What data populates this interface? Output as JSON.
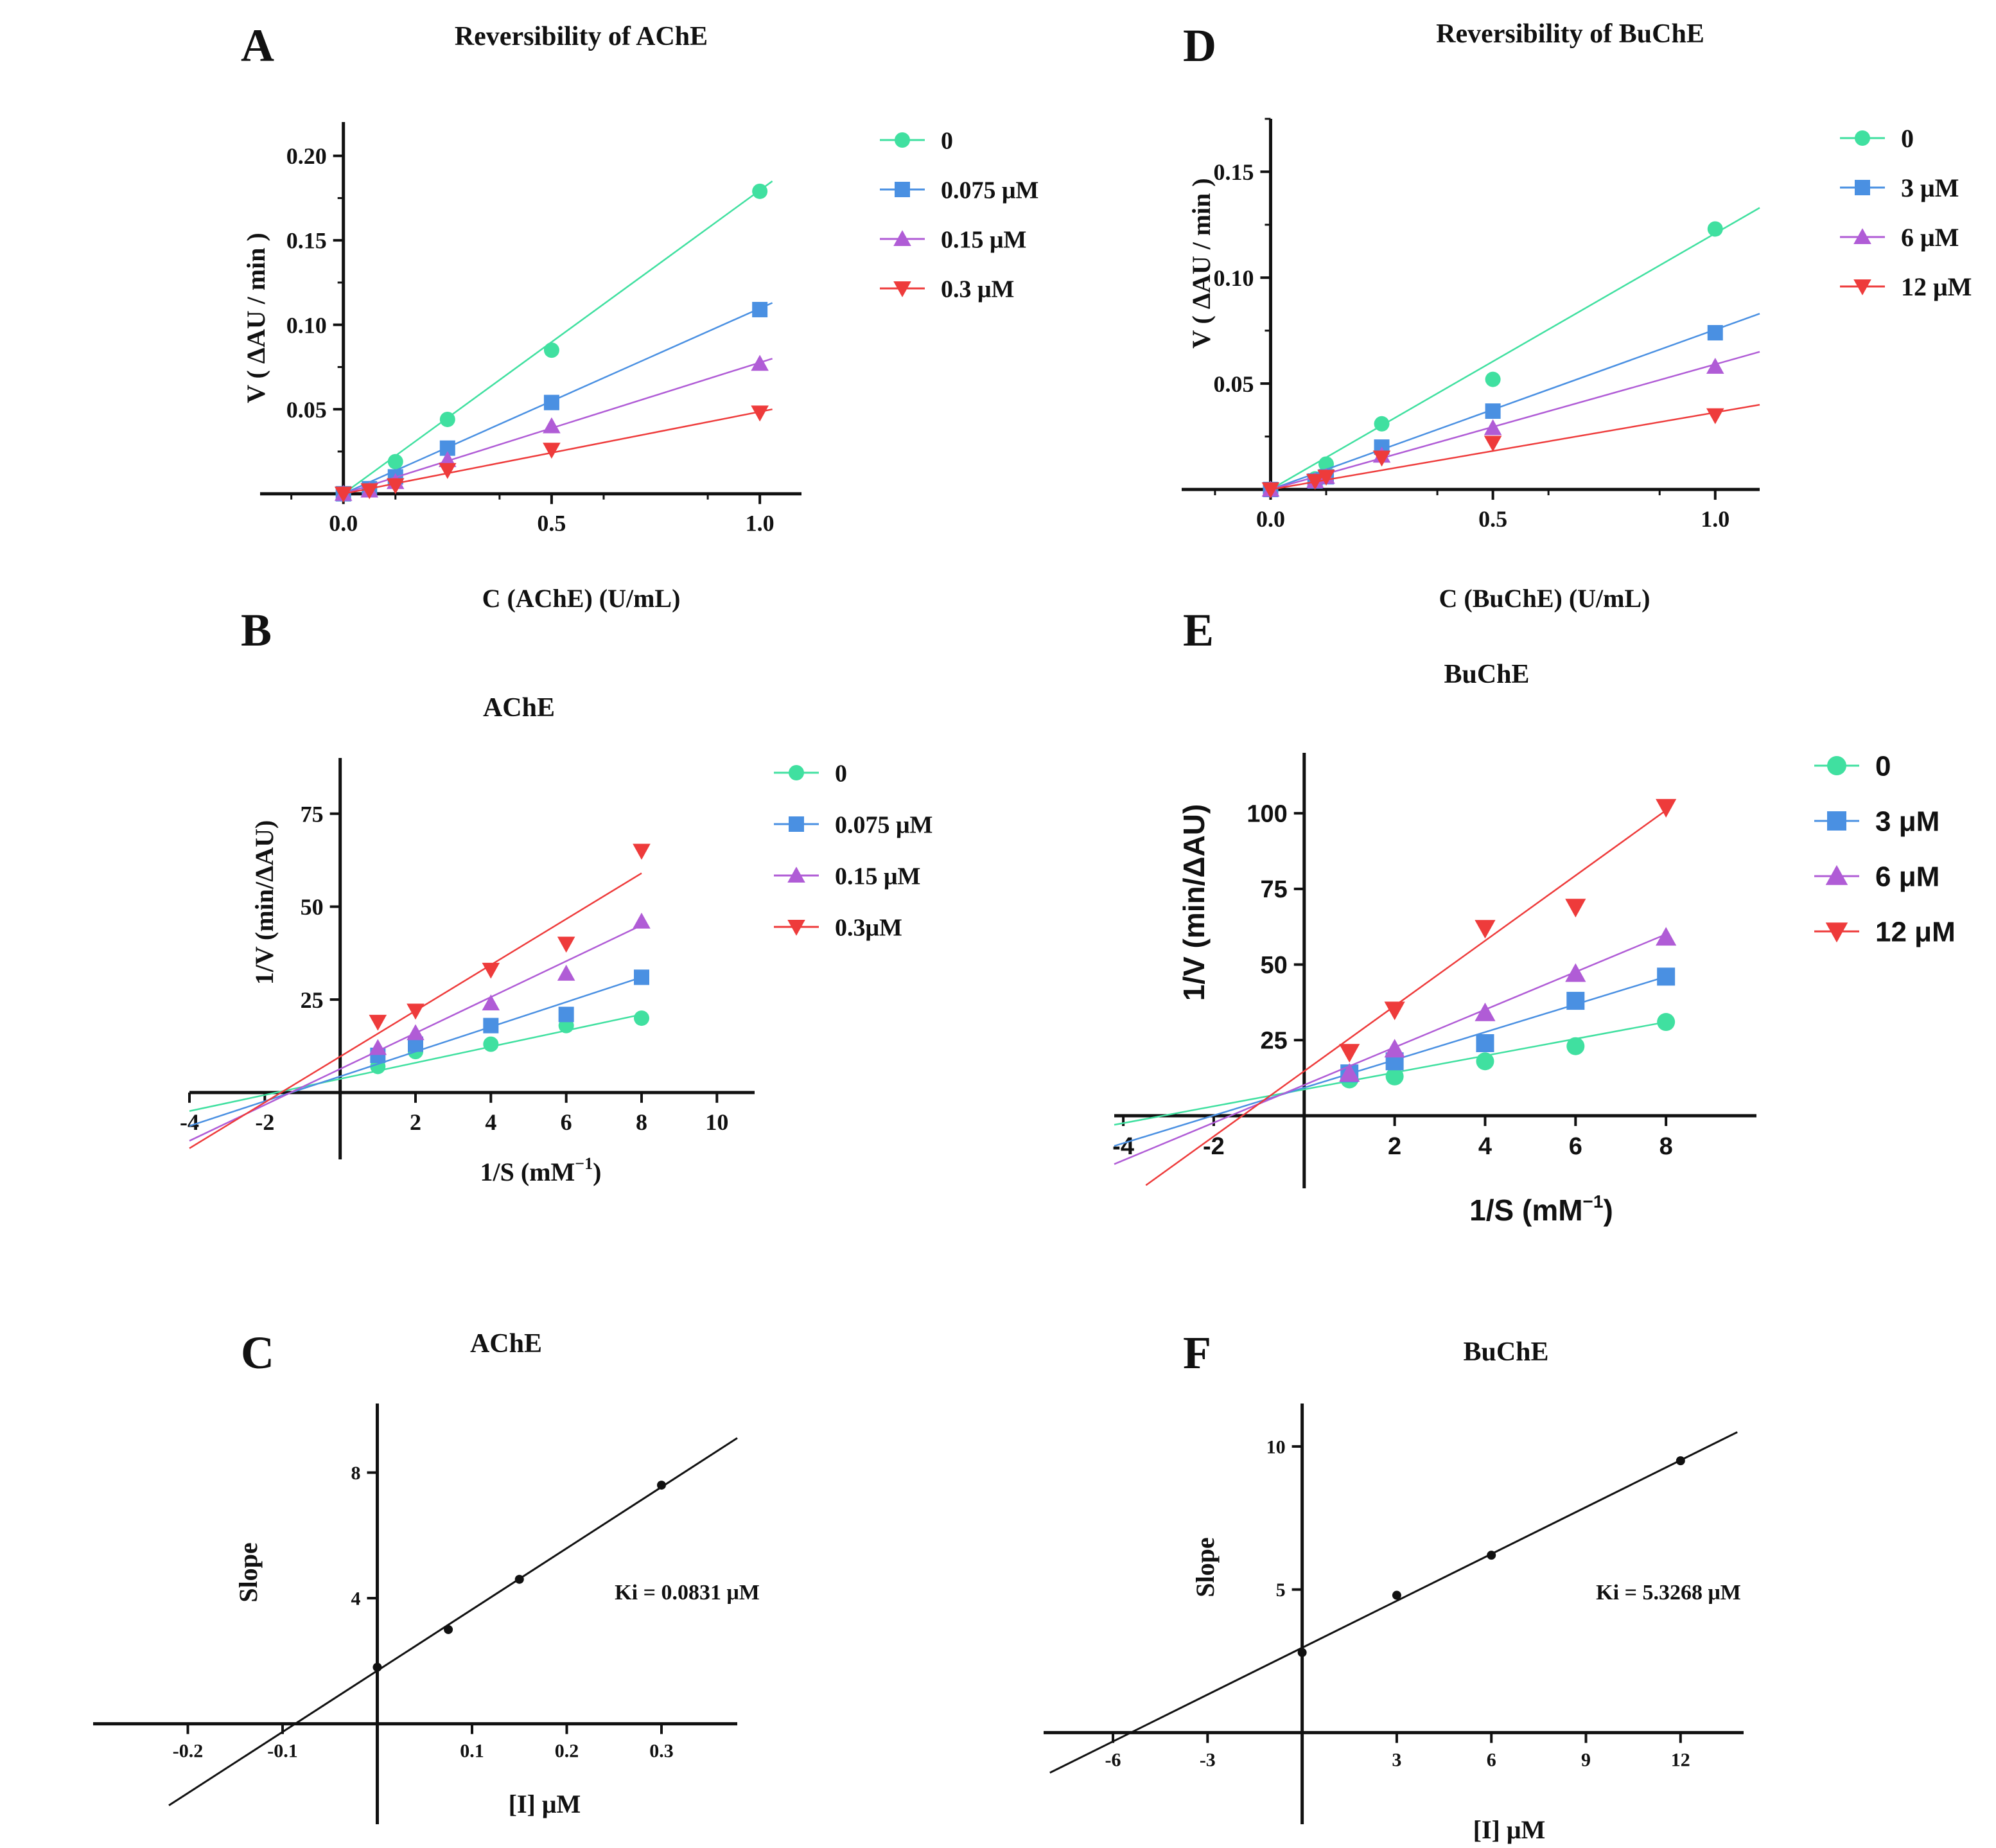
{
  "colors": {
    "s0": "#40e0a0",
    "s1": "#4a90e2",
    "s2": "#b05cd6",
    "s3": "#ee3b3b",
    "black": "#111111"
  },
  "chart_data": [
    {
      "id": "A",
      "panel": "A",
      "type": "scatter",
      "title": "Reversibility of AChE",
      "xlabel": "C (AChE) (U/mL)",
      "ylabel": "V ( ΔAU / min )",
      "xlim": [
        -0.2,
        1.1
      ],
      "ylim": [
        -0.01,
        0.22
      ],
      "xticks": [
        0.0,
        0.5,
        1.0
      ],
      "xtick_labels": [
        "0.0",
        "0.5",
        "1.0"
      ],
      "yticks": [
        0.05,
        0.1,
        0.15,
        0.2
      ],
      "ytick_labels": [
        "0.05",
        "0.10",
        "0.15",
        "0.20"
      ],
      "legend": "right",
      "series": [
        {
          "name": "0",
          "marker": "circle",
          "color": "s0",
          "x": [
            0,
            0.0625,
            0.125,
            0.25,
            0.5,
            1.0
          ],
          "y": [
            0.0,
            0.003,
            0.019,
            0.044,
            0.085,
            0.179
          ],
          "line_x": [
            0,
            1.03
          ],
          "line_y": [
            0.0,
            0.185
          ]
        },
        {
          "name": "0.075 μM",
          "marker": "square",
          "color": "s1",
          "x": [
            0,
            0.0625,
            0.125,
            0.25,
            0.5,
            1.0
          ],
          "y": [
            0.0,
            0.003,
            0.01,
            0.027,
            0.054,
            0.109
          ],
          "line_x": [
            0,
            1.03
          ],
          "line_y": [
            0.0,
            0.113
          ]
        },
        {
          "name": "0.15 μM",
          "marker": "triangle-up",
          "color": "s2",
          "x": [
            0,
            0.0625,
            0.125,
            0.25,
            0.5,
            1.0
          ],
          "y": [
            0.0,
            0.002,
            0.007,
            0.02,
            0.04,
            0.077
          ],
          "line_x": [
            0,
            1.03
          ],
          "line_y": [
            0.0,
            0.08
          ]
        },
        {
          "name": "0.3 μM",
          "marker": "triangle-down",
          "color": "s3",
          "x": [
            0,
            0.0625,
            0.125,
            0.25,
            0.5,
            1.0
          ],
          "y": [
            0.0,
            0.002,
            0.005,
            0.014,
            0.026,
            0.048
          ],
          "line_x": [
            0,
            1.03
          ],
          "line_y": [
            0.0,
            0.05
          ]
        }
      ]
    },
    {
      "id": "B",
      "panel": "B",
      "type": "scatter",
      "title": "AChE",
      "xlabel": "1/S (mM",
      "xlabel_sup": "−1",
      "xlabel_end": ")",
      "ylabel": "1/V (min/ΔAU)",
      "xlim": [
        -4,
        11
      ],
      "ylim": [
        -18,
        90
      ],
      "xticks": [
        -4,
        -2,
        2,
        4,
        6,
        8,
        10
      ],
      "xtick_labels": [
        "-4",
        "-2",
        "2",
        "4",
        "6",
        "8",
        "10"
      ],
      "yticks": [
        25,
        50,
        75
      ],
      "ytick_labels": [
        "25",
        "50",
        "75"
      ],
      "legend": "right",
      "series": [
        {
          "name": "0",
          "marker": "circle",
          "color": "s0",
          "x": [
            1,
            2,
            4,
            6,
            8
          ],
          "y": [
            7,
            11,
            13,
            18,
            20
          ],
          "line_x": [
            -4,
            8
          ],
          "line_y": [
            -5,
            21
          ]
        },
        {
          "name": "0.075 μM",
          "marker": "square",
          "color": "s1",
          "x": [
            1,
            2,
            4,
            6,
            8
          ],
          "y": [
            10,
            13,
            18,
            21,
            31
          ],
          "line_x": [
            -4,
            8
          ],
          "line_y": [
            -9,
            31
          ]
        },
        {
          "name": "0.15 μM",
          "marker": "triangle-up",
          "color": "s2",
          "x": [
            1,
            2,
            4,
            6,
            8
          ],
          "y": [
            12,
            16,
            24,
            32,
            46
          ],
          "line_x": [
            -4,
            8
          ],
          "line_y": [
            -13,
            45
          ]
        },
        {
          "name": "0.3μM",
          "marker": "triangle-down",
          "color": "s3",
          "x": [
            1,
            2,
            4,
            6,
            8
          ],
          "y": [
            19,
            22,
            33,
            40,
            65
          ],
          "line_x": [
            -4,
            8
          ],
          "line_y": [
            -15,
            59
          ]
        }
      ]
    },
    {
      "id": "C",
      "panel": "C",
      "type": "scatter",
      "title": "AChE",
      "xlabel": "[I] μM",
      "ylabel": "Slope",
      "xlim": [
        -0.3,
        0.38
      ],
      "ylim": [
        -3.2,
        10.2
      ],
      "xticks": [
        -0.2,
        -0.1,
        0.1,
        0.2,
        0.3
      ],
      "xtick_labels": [
        "-0.2",
        "-0.1",
        "0.1",
        "0.2",
        "0.3"
      ],
      "yticks": [
        4,
        8
      ],
      "ytick_labels": [
        "4",
        "8"
      ],
      "annotation": "Ki = 0.0831 μM",
      "series": [
        {
          "name": "Slope",
          "marker": "dot",
          "color": "black",
          "x": [
            0,
            0.075,
            0.15,
            0.3
          ],
          "y": [
            1.8,
            3.0,
            4.6,
            7.6
          ],
          "line_x": [
            -0.22,
            0.38
          ],
          "line_y": [
            -2.6,
            9.1
          ]
        }
      ]
    },
    {
      "id": "D",
      "panel": "D",
      "type": "scatter",
      "title": "Reversibility of BuChE",
      "xlabel": "C (BuChE) (U/mL)",
      "ylabel": "V ( ΔAU / min )",
      "xlim": [
        -0.2,
        1.1
      ],
      "ylim": [
        -0.01,
        0.175
      ],
      "xticks": [
        0.0,
        0.5,
        1.0
      ],
      "xtick_labels": [
        "0.0",
        "0.5",
        "1.0"
      ],
      "yticks": [
        0.05,
        0.1,
        0.15
      ],
      "ytick_labels": [
        "0.05",
        "0.10",
        "0.15"
      ],
      "legend": "right",
      "series": [
        {
          "name": "0",
          "marker": "circle",
          "color": "s0",
          "x": [
            0,
            0.1,
            0.125,
            0.25,
            0.5,
            1.0
          ],
          "y": [
            0.0,
            0.005,
            0.012,
            0.031,
            0.052,
            0.123
          ],
          "line_x": [
            0,
            1.1
          ],
          "line_y": [
            0.0,
            0.133
          ]
        },
        {
          "name": "3 μM",
          "marker": "square",
          "color": "s1",
          "x": [
            0,
            0.1,
            0.125,
            0.25,
            0.5,
            1.0
          ],
          "y": [
            0.0,
            0.004,
            0.006,
            0.02,
            0.037,
            0.074
          ],
          "line_x": [
            0,
            1.1
          ],
          "line_y": [
            0.0,
            0.083
          ]
        },
        {
          "name": "6 μM",
          "marker": "triangle-up",
          "color": "s2",
          "x": [
            0,
            0.1,
            0.125,
            0.25,
            0.5,
            1.0
          ],
          "y": [
            0.0,
            0.004,
            0.006,
            0.016,
            0.029,
            0.058
          ],
          "line_x": [
            0,
            1.1
          ],
          "line_y": [
            0.0,
            0.065
          ]
        },
        {
          "name": "12 μM",
          "marker": "triangle-down",
          "color": "s3",
          "x": [
            0,
            0.1,
            0.125,
            0.25,
            0.5,
            1.0
          ],
          "y": [
            0.0,
            0.004,
            0.006,
            0.015,
            0.022,
            0.035
          ],
          "line_x": [
            0,
            1.1
          ],
          "line_y": [
            0.0,
            0.04
          ]
        }
      ]
    },
    {
      "id": "E",
      "panel": "E",
      "type": "scatter",
      "title": "BuChE",
      "xlabel": "1/S (mM",
      "xlabel_sup": "−1",
      "xlabel_end": ")",
      "ylabel": "1/V (min/ΔAU)",
      "xlim": [
        -4.2,
        10
      ],
      "ylim": [
        -24,
        120
      ],
      "xticks": [
        -4,
        -2,
        2,
        4,
        6,
        8
      ],
      "xtick_labels": [
        "-4",
        "-2",
        "2",
        "4",
        "6",
        "8"
      ],
      "yticks": [
        25,
        50,
        75,
        100
      ],
      "ytick_labels": [
        "25",
        "50",
        "75",
        "100"
      ],
      "legend": "right",
      "series": [
        {
          "name": "0",
          "marker": "circle",
          "color": "s0",
          "x": [
            1,
            2,
            4,
            6,
            8
          ],
          "y": [
            12,
            13,
            18,
            23,
            31
          ],
          "line_x": [
            -4.2,
            8
          ],
          "line_y": [
            -3,
            31
          ]
        },
        {
          "name": "3 μM",
          "marker": "square",
          "color": "s1",
          "x": [
            1,
            2,
            4,
            6,
            8
          ],
          "y": [
            14,
            18,
            24,
            38,
            46
          ],
          "line_x": [
            -4.2,
            8
          ],
          "line_y": [
            -10,
            46
          ]
        },
        {
          "name": "6 μM",
          "marker": "triangle-up",
          "color": "s2",
          "x": [
            1,
            2,
            4,
            6,
            8
          ],
          "y": [
            14,
            22,
            34,
            47,
            59
          ],
          "line_x": [
            -4.2,
            8
          ],
          "line_y": [
            -16,
            60
          ]
        },
        {
          "name": "12 μM",
          "marker": "triangle-down",
          "color": "s3",
          "x": [
            1,
            2,
            4,
            6,
            8
          ],
          "y": [
            21,
            35,
            62,
            69,
            102
          ],
          "line_x": [
            -3.5,
            8
          ],
          "line_y": [
            -23,
            101
          ]
        }
      ]
    },
    {
      "id": "F",
      "panel": "F",
      "type": "scatter",
      "title": "BuChE",
      "xlabel": "[I] μM",
      "ylabel": "Slope",
      "xlim": [
        -8.2,
        14
      ],
      "ylim": [
        -3.2,
        11.5
      ],
      "xticks": [
        -6,
        -3,
        3,
        6,
        9,
        12
      ],
      "xtick_labels": [
        "-6",
        "-3",
        "3",
        "6",
        "9",
        "12"
      ],
      "yticks": [
        5,
        10
      ],
      "ytick_labels": [
        "5",
        "10"
      ],
      "annotation": "Ki = 5.3268 μM",
      "series": [
        {
          "name": "Slope",
          "marker": "dot",
          "color": "black",
          "x": [
            0,
            3,
            6,
            12
          ],
          "y": [
            2.8,
            4.8,
            6.2,
            9.5
          ],
          "line_x": [
            -8.0,
            13.8
          ],
          "line_y": [
            -1.4,
            10.5
          ]
        }
      ]
    }
  ]
}
